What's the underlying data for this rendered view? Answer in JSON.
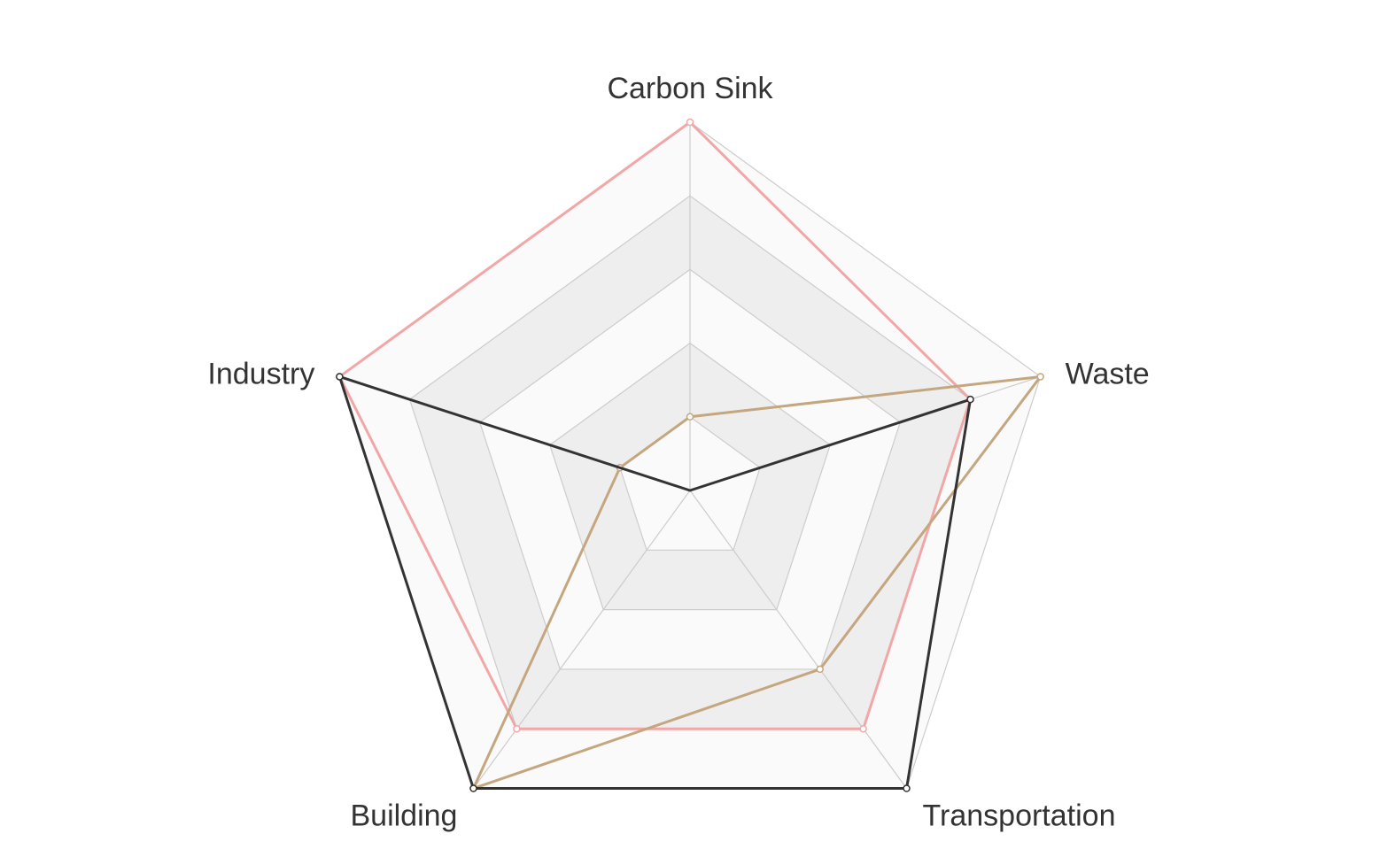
{
  "chart_data": {
    "type": "radar",
    "indicators": [
      "Carbon Sink",
      "Waste",
      "Transportation",
      "Building",
      "Industry"
    ],
    "max": [
      100,
      100,
      100,
      100,
      100
    ],
    "split_number": 5,
    "series": [
      {
        "values": [
          100,
          80,
          80,
          80,
          100
        ],
        "color": "#f2a7a7"
      },
      {
        "values": [
          20,
          100,
          60,
          100,
          20
        ],
        "color": "#c4a67f"
      },
      {
        "values": [
          0,
          80,
          100,
          100,
          100
        ],
        "color": "#333333"
      }
    ],
    "grid_colors": {
      "band_light": "#fafafa",
      "band_dark": "#eeeeee",
      "split_line": "#cccccc"
    }
  }
}
